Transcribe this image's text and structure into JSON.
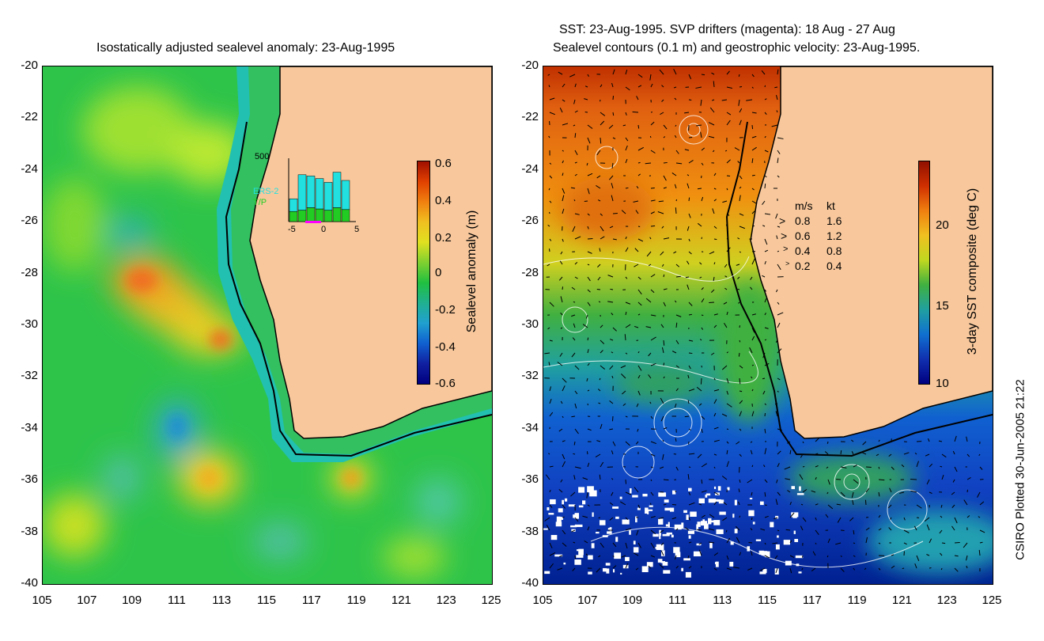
{
  "left": {
    "title": "Isostatically adjusted sealevel anomaly: 23-Aug-1995",
    "colorbar": {
      "label": "Sealevel anomaly (m)",
      "ticks": [
        "0.6",
        "0.4",
        "0.2",
        "0",
        "-0.2",
        "-0.4",
        "-0.6"
      ]
    },
    "inset": {
      "ymax": "500",
      "legend": [
        "ERS-2",
        "T/P"
      ],
      "xticks": [
        "-5",
        "0",
        "5"
      ],
      "ers2_counts": [
        100,
        280,
        250,
        240,
        220,
        280,
        230
      ],
      "tp_counts": [
        80,
        90,
        110,
        100,
        90,
        110,
        95
      ],
      "ers_color": "#22e0e0",
      "tp_color": "#22cc22"
    }
  },
  "right": {
    "title_line1": "SST: 23-Aug-1995. SVP drifters (magenta): 18 Aug - 27 Aug",
    "title_line2": "Sealevel contours (0.1 m) and geostrophic velocity: 23-Aug-1995.",
    "colorbar": {
      "label": "3-day SST composite (deg C)",
      "ticks": [
        "20",
        "15",
        "10"
      ]
    },
    "vector_legend": {
      "header_ms": "m/s",
      "header_kt": "kt",
      "rows": [
        {
          "ms": "0.8",
          "kt": "1.6"
        },
        {
          "ms": "0.6",
          "kt": "1.2"
        },
        {
          "ms": "0.4",
          "kt": "0.8"
        },
        {
          "ms": "0.2",
          "kt": "0.4"
        }
      ]
    }
  },
  "axes": {
    "lat_ticks": [
      "-20",
      "-22",
      "-24",
      "-26",
      "-28",
      "-30",
      "-32",
      "-34",
      "-36",
      "-38",
      "-40"
    ],
    "lon_ticks": [
      "105",
      "107",
      "109",
      "111",
      "113",
      "115",
      "117",
      "119",
      "121",
      "123",
      "125"
    ]
  },
  "credit": "CSIRO Plotted 30-Jun-2005 21:22",
  "colors": {
    "land": "#f8c89c",
    "sla_base": "#22c040",
    "sst_warm": "#e07000",
    "sst_cold": "#1040c0"
  }
}
